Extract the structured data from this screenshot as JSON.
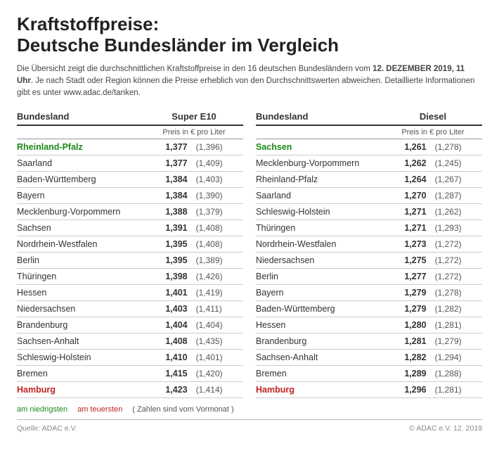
{
  "title_line1": "Kraftstoffpreise:",
  "title_line2": "Deutsche Bundesländer im Vergleich",
  "subtitle_pre": "Die Übersicht zeigt die durchschnittlichen Kraftstoffpreise in den 16 deutschen Bundesländern vom ",
  "subtitle_date": "12. DEZEMBER 2019, 11 Uhr",
  "subtitle_post": ". Je nach Stadt oder Region können die Preise erheblich von den Durchschnittswerten abweichen. Detaillierte Informationen gibt es unter www.adac.de/tanken.",
  "col_bundesland": "Bundesland",
  "col_price_unit": "Preis in € pro Liter",
  "tables": [
    {
      "fuel": "Super E10",
      "rows": [
        {
          "name": "Rheinland-Pfalz",
          "price": "1,377",
          "prev": "(1,396)",
          "cls": "lowest"
        },
        {
          "name": "Saarland",
          "price": "1,377",
          "prev": "(1,409)",
          "cls": ""
        },
        {
          "name": "Baden-Württemberg",
          "price": "1,384",
          "prev": "(1,403)",
          "cls": ""
        },
        {
          "name": "Bayern",
          "price": "1,384",
          "prev": "(1,390)",
          "cls": ""
        },
        {
          "name": "Mecklenburg-Vorpommern",
          "price": "1,388",
          "prev": "(1,379)",
          "cls": ""
        },
        {
          "name": "Sachsen",
          "price": "1,391",
          "prev": "(1,408)",
          "cls": ""
        },
        {
          "name": "Nordrhein-Westfalen",
          "price": "1,395",
          "prev": "(1,408)",
          "cls": ""
        },
        {
          "name": "Berlin",
          "price": "1,395",
          "prev": "(1,389)",
          "cls": ""
        },
        {
          "name": "Thüringen",
          "price": "1,398",
          "prev": "(1,426)",
          "cls": ""
        },
        {
          "name": "Hessen",
          "price": "1,401",
          "prev": "(1,419)",
          "cls": ""
        },
        {
          "name": "Niedersachsen",
          "price": "1,403",
          "prev": "(1,411)",
          "cls": ""
        },
        {
          "name": "Brandenburg",
          "price": "1,404",
          "prev": "(1,404)",
          "cls": ""
        },
        {
          "name": "Sachsen-Anhalt",
          "price": "1,408",
          "prev": "(1,435)",
          "cls": ""
        },
        {
          "name": "Schleswig-Holstein",
          "price": "1,410",
          "prev": "(1,401)",
          "cls": ""
        },
        {
          "name": "Bremen",
          "price": "1,415",
          "prev": "(1,420)",
          "cls": ""
        },
        {
          "name": "Hamburg",
          "price": "1,423",
          "prev": "(1,414)",
          "cls": "highest"
        }
      ]
    },
    {
      "fuel": "Diesel",
      "rows": [
        {
          "name": "Sachsen",
          "price": "1,261",
          "prev": "(1,278)",
          "cls": "lowest"
        },
        {
          "name": "Mecklenburg-Vorpommern",
          "price": "1,262",
          "prev": "(1,245)",
          "cls": ""
        },
        {
          "name": "Rheinland-Pfalz",
          "price": "1,264",
          "prev": "(1,267)",
          "cls": ""
        },
        {
          "name": "Saarland",
          "price": "1,270",
          "prev": "(1,287)",
          "cls": ""
        },
        {
          "name": "Schleswig-Holstein",
          "price": "1,271",
          "prev": "(1,262)",
          "cls": ""
        },
        {
          "name": "Thüringen",
          "price": "1,271",
          "prev": "(1,293)",
          "cls": ""
        },
        {
          "name": "Nordrhein-Westfalen",
          "price": "1,273",
          "prev": "(1,272)",
          "cls": ""
        },
        {
          "name": "Niedersachsen",
          "price": "1,275",
          "prev": "(1,272)",
          "cls": ""
        },
        {
          "name": "Berlin",
          "price": "1,277",
          "prev": "(1,272)",
          "cls": ""
        },
        {
          "name": "Bayern",
          "price": "1,279",
          "prev": "(1,278)",
          "cls": ""
        },
        {
          "name": "Baden-Württemberg",
          "price": "1,279",
          "prev": "(1,282)",
          "cls": ""
        },
        {
          "name": "Hessen",
          "price": "1,280",
          "prev": "(1,281)",
          "cls": ""
        },
        {
          "name": "Brandenburg",
          "price": "1,281",
          "prev": "(1,279)",
          "cls": ""
        },
        {
          "name": "Sachsen-Anhalt",
          "price": "1,282",
          "prev": "(1,294)",
          "cls": ""
        },
        {
          "name": "Bremen",
          "price": "1,289",
          "prev": "(1,288)",
          "cls": ""
        },
        {
          "name": "Hamburg",
          "price": "1,296",
          "prev": "(1,281)",
          "cls": "highest"
        }
      ]
    }
  ],
  "legend_low": "am niedrigsten",
  "legend_high": "am teuersten",
  "legend_note": "( Zahlen sind vom Vormonat )",
  "footer_left": "Quelle: ADAC e.V.",
  "footer_right": "© ADAC e.V. 12. 2019",
  "colors": {
    "lowest": "#1a8a1a",
    "highest": "#c22222",
    "text": "#333333",
    "border_heavy": "#333333",
    "border_light": "#cccccc",
    "background": "#ffffff"
  },
  "typography": {
    "title_fontsize": 26,
    "subtitle_fontsize": 11.5,
    "header_fontsize": 13,
    "row_fontsize": 12.5,
    "legend_fontsize": 11,
    "footer_fontsize": 10.5
  }
}
